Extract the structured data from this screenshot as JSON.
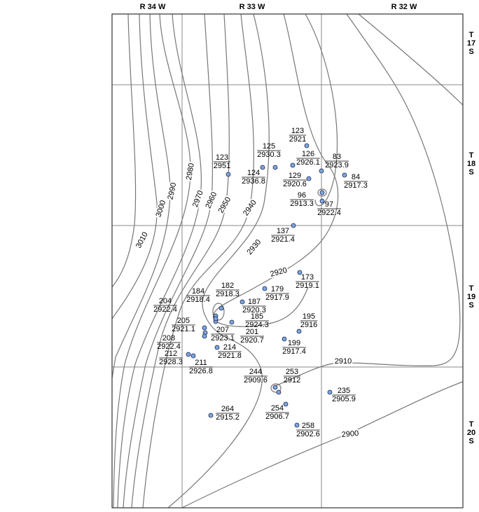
{
  "ranges": [
    "R 34 W",
    "R 33 W",
    "R 32 W"
  ],
  "townships": [
    [
      "T",
      "17",
      "S"
    ],
    [
      "T",
      "18",
      "S"
    ],
    [
      "T",
      "19",
      "S"
    ],
    [
      "T",
      "20",
      "S"
    ]
  ],
  "contours": [
    "3010",
    "3000",
    "2990",
    "2980",
    "2970",
    "2960",
    "2950",
    "2940",
    "2930",
    "2920",
    "2910",
    "2900"
  ],
  "wells": [
    {
      "number": "123",
      "elevation": "2921"
    },
    {
      "number": "125",
      "elevation": "2930.3"
    },
    {
      "number": "124",
      "elevation": "2936.8"
    },
    {
      "number": "123",
      "elevation": "2951"
    },
    {
      "number": "126",
      "elevation": "2926.1"
    },
    {
      "number": "83",
      "elevation": "2923.9"
    },
    {
      "number": "84",
      "elevation": "2917.3"
    },
    {
      "number": "129",
      "elevation": "2920.6"
    },
    {
      "number": "96",
      "elevation": "2913.3"
    },
    {
      "number": "97",
      "elevation": "2922.4"
    },
    {
      "number": "137",
      "elevation": "2921.4"
    },
    {
      "number": "173",
      "elevation": "2919.1"
    },
    {
      "number": "179",
      "elevation": "2917.9"
    },
    {
      "number": "182",
      "elevation": "2918.3"
    },
    {
      "number": "184",
      "elevation": "2918.4"
    },
    {
      "number": "187",
      "elevation": "2920.3"
    },
    {
      "number": "204",
      "elevation": "2922.4"
    },
    {
      "number": "185",
      "elevation": "2924.3"
    },
    {
      "number": "195",
      "elevation": "2916"
    },
    {
      "number": "205",
      "elevation": "2921.1"
    },
    {
      "number": "207",
      "elevation": "2923.1"
    },
    {
      "number": "201",
      "elevation": "2920.7"
    },
    {
      "number": "208",
      "elevation": "2922.4"
    },
    {
      "number": "199",
      "elevation": "2917.4"
    },
    {
      "number": "214",
      "elevation": "2921.8"
    },
    {
      "number": "212",
      "elevation": "2928.3"
    },
    {
      "number": "211",
      "elevation": "2926.8"
    },
    {
      "number": "244",
      "elevation": "2909.6"
    },
    {
      "number": "253",
      "elevation": "2912"
    },
    {
      "number": "235",
      "elevation": "2905.9"
    },
    {
      "number": "254",
      "elevation": "2906.7"
    },
    {
      "number": "264",
      "elevation": "2915.2"
    },
    {
      "number": "258",
      "elevation": "2902.6"
    }
  ]
}
